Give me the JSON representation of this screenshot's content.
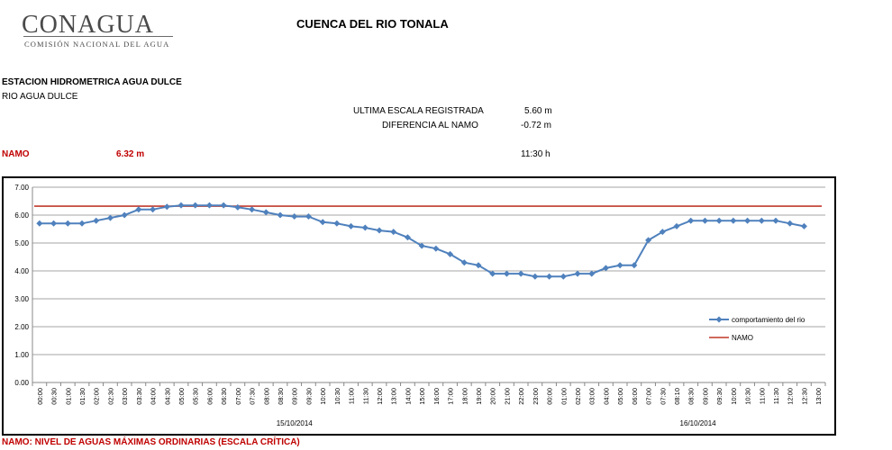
{
  "header": {
    "logo_text": "CONAGUA",
    "logo_subtitle": "COMISIÓN NACIONAL DEL AGUA",
    "title": "CUENCA DEL RIO TONALA"
  },
  "station": {
    "name": "ESTACION HIDROMETRICA AGUA DULCE",
    "river": "RIO AGUA DULCE"
  },
  "readings": {
    "last_scale_label": "ULTIMA ESCALA REGISTRADA",
    "last_scale_value": "5.60 m",
    "diff_label": "DIFERENCIA AL NAMO",
    "diff_value": "-0.72 m",
    "time_value": "11:30 h"
  },
  "namo": {
    "label": "NAMO",
    "value": "6.32 m"
  },
  "footer_note": "NAMO: NIVEL DE AGUAS MÁXIMAS ORDINARIAS (ESCALA CRÍTICA)",
  "colors": {
    "series": "#4f81bd",
    "namo": "#c0392b",
    "accent_red": "#c00000"
  },
  "chart_data": {
    "type": "line",
    "categories": [
      "00:00",
      "00:30",
      "01:00",
      "01:30",
      "02:00",
      "02:30",
      "03:00",
      "03:30",
      "04:00",
      "04:30",
      "05:00",
      "05:30",
      "06:00",
      "06:30",
      "07:00",
      "07:30",
      "08:00",
      "08:30",
      "09:00",
      "09:30",
      "10:00",
      "10:30",
      "11:00",
      "11:30",
      "12:00",
      "13:00",
      "14:00",
      "15:00",
      "16:00",
      "17:00",
      "18:00",
      "19:00",
      "20:00",
      "21:00",
      "22:00",
      "23:00",
      "00:00",
      "01:00",
      "02:00",
      "03:00",
      "04:00",
      "05:00",
      "06:00",
      "07:00",
      "07:30",
      "08:10",
      "08:30",
      "09:00",
      "09:30",
      "10:00",
      "10:30",
      "11:00",
      "11:30",
      "12:00",
      "12:30",
      "13:00"
    ],
    "date_labels": [
      "15/10/2014",
      "16/10/2014"
    ],
    "series": [
      {
        "name": "comportamiento del rio",
        "values": [
          5.7,
          5.7,
          5.7,
          5.7,
          5.8,
          5.9,
          6.0,
          6.2,
          6.2,
          6.3,
          6.35,
          6.35,
          6.35,
          6.35,
          6.28,
          6.2,
          6.1,
          6.0,
          5.95,
          5.95,
          5.75,
          5.7,
          5.6,
          5.55,
          5.45,
          5.4,
          5.2,
          4.9,
          4.8,
          4.6,
          4.3,
          4.2,
          3.9,
          3.9,
          3.9,
          3.8,
          3.8,
          3.8,
          3.9,
          3.9,
          4.1,
          4.2,
          4.2,
          5.1,
          5.4,
          5.6,
          5.8,
          5.8,
          5.8,
          5.8,
          5.8,
          5.8,
          5.8,
          5.7,
          5.6,
          null
        ]
      },
      {
        "name": "NAMO",
        "constant": 6.32
      }
    ],
    "yticks": [
      "0.00",
      "1.00",
      "2.00",
      "3.00",
      "4.00",
      "5.00",
      "6.00",
      "7.00"
    ],
    "ylim": [
      0,
      7
    ],
    "grid": true,
    "legend": "right"
  }
}
